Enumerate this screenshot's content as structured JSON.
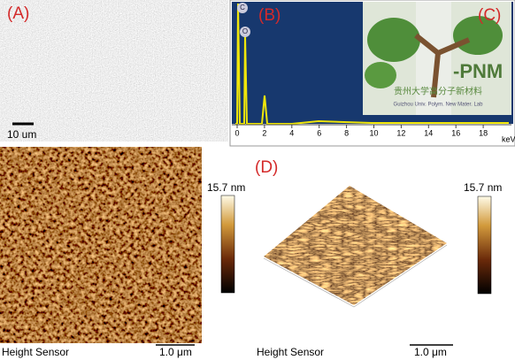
{
  "panels": {
    "a": {
      "label": "(A)",
      "scale_bar": "10 um"
    },
    "b": {
      "label": "(B)",
      "peaks": [
        "C",
        "O"
      ],
      "x_ticks": [
        0,
        2,
        4,
        6,
        8,
        10,
        12,
        14,
        16,
        18
      ],
      "x_unit": "keV"
    },
    "c": {
      "label": "(C)",
      "logo_text": "-PNM",
      "logo_caption": "贵州大学高分子新材料",
      "logo_subcaption": "Guizhou Univ. Polym. New Mater. Lab"
    },
    "afm_2d": {
      "colorbar_max": "15.7 nm",
      "channel": "Height Sensor",
      "scale_bar": "1.0 μm"
    },
    "d": {
      "label": "(D)",
      "colorbar_max": "15.7 nm",
      "channel": "Height Sensor",
      "scale_bar": "1.0 μm"
    }
  }
}
